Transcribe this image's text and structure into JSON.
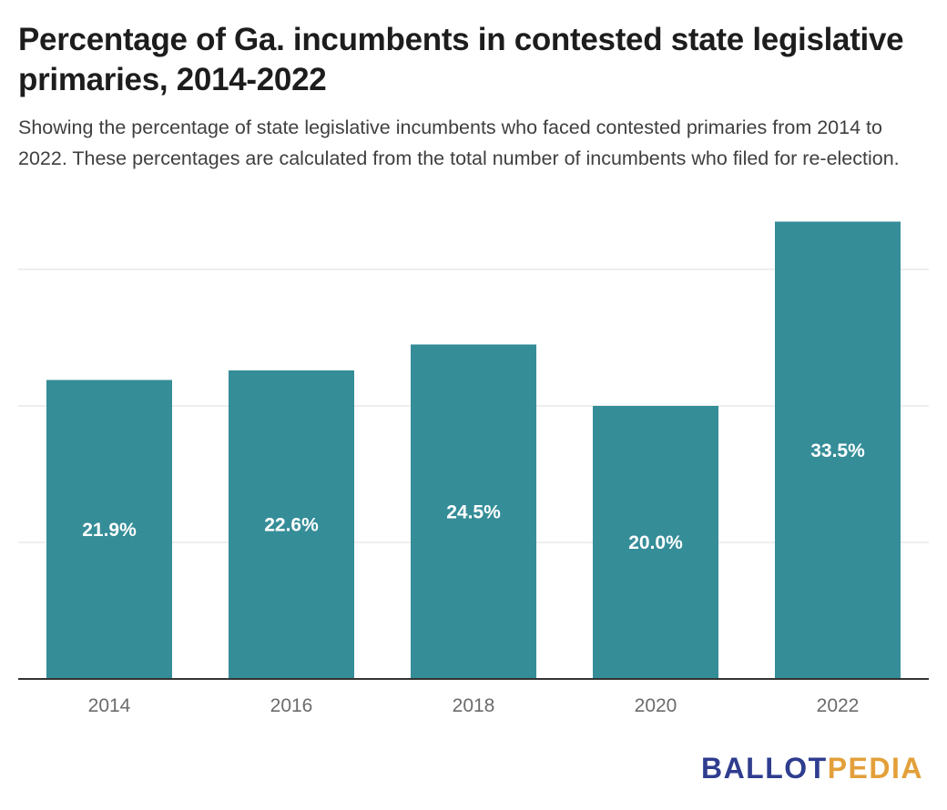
{
  "title": "Percentage of Ga. incumbents in contested state legislative primaries, 2014-2022",
  "subtitle": "Showing the percentage of state legislative incumbents who faced contested primaries from 2014 to 2022. These percentages are calculated from the total number of incumbents who filed for re-election.",
  "logo": {
    "part1": "BALLOT",
    "part2": "PEDIA",
    "color1": "#2f3d8f",
    "color2": "#e3a03a"
  },
  "colors": {
    "bar": "#358d98",
    "grid": "#e3e3e3",
    "axis": "#333333"
  },
  "chart_data": {
    "type": "bar",
    "title": "Percentage of Ga. incumbents in contested state legislative primaries, 2014-2022",
    "xlabel": "",
    "ylabel": "",
    "categories": [
      "2014",
      "2016",
      "2018",
      "2020",
      "2022"
    ],
    "values": [
      21.9,
      22.6,
      24.5,
      20.0,
      33.5
    ],
    "value_labels": [
      "21.9%",
      "22.6%",
      "24.5%",
      "20.0%",
      "33.5%"
    ],
    "ylim": [
      0,
      30
    ],
    "gridlines": [
      10,
      20,
      30
    ],
    "grid": true,
    "legend": "none"
  }
}
